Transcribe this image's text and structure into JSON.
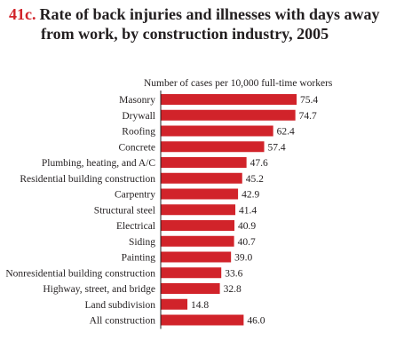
{
  "figure": {
    "number": "41c.",
    "title_line1": "Rate of back injuries and illnesses with days away",
    "title_line2": "from work, by construction industry, 2005"
  },
  "chart_data": {
    "type": "bar",
    "orientation": "horizontal",
    "title": "Rate of back injuries and illnesses with days away from work, by construction industry, 2005",
    "xlabel": "Number of cases per 10,000 full-time workers",
    "ylabel": "",
    "xlim": [
      0,
      80
    ],
    "grid": false,
    "legend": "none",
    "bar_color": "#d1232a",
    "categories": [
      "Masonry",
      "Drywall",
      "Roofing",
      "Concrete",
      "Plumbing, heating, and A/C",
      "Residential building construction",
      "Carpentry",
      "Structural steel",
      "Electrical",
      "Siding",
      "Painting",
      "Nonresidential building construction",
      "Highway, street, and bridge",
      "Land subdivision",
      "All construction"
    ],
    "values": [
      75.4,
      74.7,
      62.4,
      57.4,
      47.6,
      45.2,
      42.9,
      41.4,
      40.9,
      40.7,
      39.0,
      33.6,
      32.8,
      14.8,
      46.0
    ],
    "value_labels": [
      "75.4",
      "74.7",
      "62.4",
      "57.4",
      "47.6",
      "45.2",
      "42.9",
      "41.4",
      "40.9",
      "40.7",
      "39.0",
      "33.6",
      "32.8",
      "14.8",
      "46.0"
    ]
  }
}
